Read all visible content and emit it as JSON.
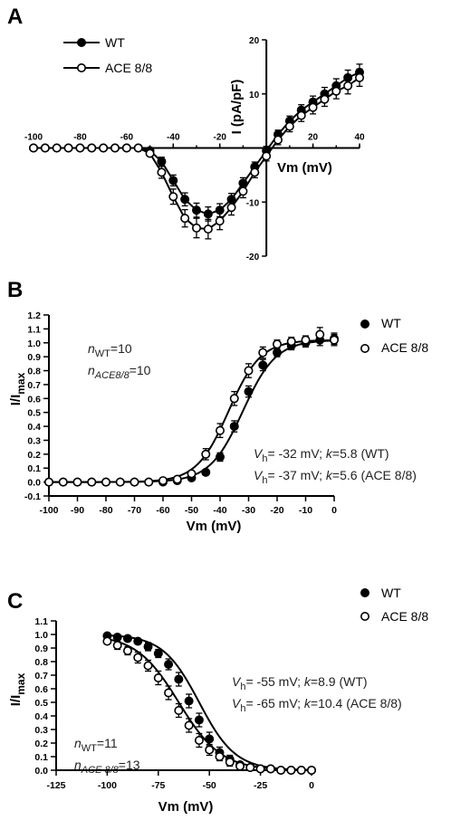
{
  "figure": {
    "panel_labels": [
      "A",
      "B",
      "C"
    ]
  },
  "chart_data": [
    {
      "panel": "A",
      "type": "line",
      "xlabel": "Vm (mV)",
      "ylabel": "I (pA/pF)",
      "xlim": [
        -100,
        40
      ],
      "ylim": [
        -20,
        20
      ],
      "xticks": [
        -100,
        -80,
        -60,
        -40,
        -20,
        20,
        40
      ],
      "yticks": [
        -20,
        -10,
        10,
        20
      ],
      "xtick_labels": [
        "-100",
        "-80",
        "-60",
        "-40",
        "-20",
        "20",
        "40"
      ],
      "ytick_labels": [
        "-20",
        "-10",
        "10",
        "20"
      ],
      "legend": {
        "placement": "top-left",
        "entries": [
          "WT",
          "ACE 8/8"
        ]
      },
      "series": [
        {
          "name": "WT",
          "marker": "filled",
          "x": [
            -100,
            -95,
            -90,
            -85,
            -80,
            -75,
            -70,
            -65,
            -60,
            -55,
            -50,
            -45,
            -40,
            -35,
            -30,
            -25,
            -20,
            -15,
            -10,
            -5,
            0,
            5,
            10,
            15,
            20,
            25,
            30,
            35,
            40
          ],
          "y": [
            0,
            0,
            0,
            0,
            0,
            0,
            0,
            0,
            0,
            0,
            -0.5,
            -2.5,
            -6.0,
            -9.5,
            -11.5,
            -12.2,
            -11.5,
            -9.5,
            -6.5,
            -3.5,
            -0.5,
            2.5,
            5.0,
            7.0,
            8.5,
            10.0,
            11.5,
            13.0,
            14.0
          ],
          "err": [
            0.2,
            0.2,
            0.2,
            0.2,
            0.2,
            0.2,
            0.2,
            0.2,
            0.2,
            0.2,
            0.4,
            0.8,
            1.0,
            1.2,
            1.3,
            1.3,
            1.2,
            1.1,
            1.0,
            0.9,
            0.8,
            0.8,
            0.9,
            1.0,
            1.1,
            1.2,
            1.3,
            1.4,
            1.5
          ]
        },
        {
          "name": "ACE 8/8",
          "marker": "open",
          "x": [
            -100,
            -95,
            -90,
            -85,
            -80,
            -75,
            -70,
            -65,
            -60,
            -55,
            -50,
            -45,
            -40,
            -35,
            -30,
            -25,
            -20,
            -15,
            -10,
            -5,
            0,
            5,
            10,
            15,
            20,
            25,
            30,
            35,
            40
          ],
          "y": [
            0,
            0,
            0,
            0,
            0,
            0,
            0,
            0,
            0,
            0,
            -1.0,
            -4.5,
            -9.0,
            -13.0,
            -14.8,
            -15.0,
            -13.5,
            -11.0,
            -8.0,
            -4.5,
            -1.5,
            1.5,
            4.0,
            6.0,
            7.5,
            9.0,
            10.5,
            11.5,
            13.0
          ],
          "err": [
            0.2,
            0.2,
            0.2,
            0.2,
            0.2,
            0.2,
            0.2,
            0.2,
            0.2,
            0.2,
            0.5,
            1.1,
            1.4,
            1.6,
            1.8,
            1.8,
            1.6,
            1.4,
            1.2,
            1.0,
            0.9,
            0.9,
            1.0,
            1.1,
            1.2,
            1.3,
            1.4,
            1.5,
            1.6
          ]
        }
      ]
    },
    {
      "panel": "B",
      "type": "scatter",
      "xlabel": "Vm (mV)",
      "ylabel": "I/I",
      "ylabel_sub": "max",
      "xlim": [
        -100,
        0
      ],
      "ylim": [
        -0.1,
        1.2
      ],
      "xticks": [
        -100,
        -90,
        -80,
        -70,
        -60,
        -50,
        -40,
        -30,
        -20,
        -10,
        0
      ],
      "yticks": [
        -0.1,
        0.0,
        0.1,
        0.2,
        0.3,
        0.4,
        0.5,
        0.6,
        0.7,
        0.8,
        0.9,
        1.0,
        1.1,
        1.2
      ],
      "xtick_labels": [
        "-100",
        "-90",
        "-80",
        "-70",
        "-60",
        "-50",
        "-40",
        "-30",
        "-20",
        "-10",
        "0"
      ],
      "ytick_labels": [
        "-0.1",
        "0.0",
        "0.1",
        "0.2",
        "0.3",
        "0.4",
        "0.5",
        "0.6",
        "0.7",
        "0.8",
        "0.9",
        "1.0",
        "1.1",
        "1.2"
      ],
      "legend": {
        "placement": "top-right",
        "entries": [
          "WT",
          "ACE 8/8"
        ]
      },
      "annotations": {
        "n1": {
          "pre": "n",
          "sub": "WT",
          "post": "=10"
        },
        "n2": {
          "pre": "n",
          "sub": "ACE8/8",
          "post": "=10"
        },
        "fit1": {
          "pre": "V",
          "sub": "h",
          "mid": "= -32 mV;  ",
          "k": "k",
          "post": "=5.8 (WT)"
        },
        "fit2": {
          "pre": "V",
          "sub": "h",
          "mid": "= -37 mV;  ",
          "k": "k",
          "post": "=5.6 (ACE 8/8)"
        }
      },
      "fits": [
        {
          "series": "WT",
          "vh": -32,
          "k": 5.8,
          "form": "activation"
        },
        {
          "series": "ACE 8/8",
          "vh": -37,
          "k": 5.6,
          "form": "activation"
        }
      ],
      "series": [
        {
          "name": "WT",
          "marker": "filled",
          "x": [
            -100,
            -95,
            -90,
            -85,
            -80,
            -75,
            -70,
            -65,
            -60,
            -55,
            -50,
            -45,
            -40,
            -35,
            -30,
            -25,
            -20,
            -15,
            -10,
            -5,
            0
          ],
          "y": [
            0.0,
            0.0,
            0.0,
            0.0,
            0.0,
            0.0,
            0.0,
            0.0,
            0.0,
            0.01,
            0.03,
            0.07,
            0.18,
            0.4,
            0.65,
            0.84,
            0.93,
            0.98,
            1.0,
            1.02,
            1.03
          ],
          "err": [
            0.01,
            0.01,
            0.01,
            0.01,
            0.01,
            0.01,
            0.01,
            0.01,
            0.01,
            0.01,
            0.01,
            0.02,
            0.03,
            0.04,
            0.04,
            0.04,
            0.03,
            0.03,
            0.03,
            0.04,
            0.04
          ]
        },
        {
          "name": "ACE 8/8",
          "marker": "open",
          "x": [
            -100,
            -95,
            -90,
            -85,
            -80,
            -75,
            -70,
            -65,
            -60,
            -55,
            -50,
            -45,
            -40,
            -35,
            -30,
            -25,
            -20,
            -15,
            -10,
            -5,
            0
          ],
          "y": [
            0.0,
            0.0,
            0.0,
            0.0,
            0.0,
            0.0,
            0.0,
            0.0,
            0.01,
            0.02,
            0.06,
            0.2,
            0.37,
            0.6,
            0.8,
            0.93,
            0.99,
            1.01,
            1.02,
            1.06,
            1.02
          ],
          "err": [
            0.01,
            0.01,
            0.01,
            0.01,
            0.01,
            0.01,
            0.01,
            0.01,
            0.01,
            0.01,
            0.02,
            0.04,
            0.05,
            0.05,
            0.05,
            0.04,
            0.03,
            0.03,
            0.03,
            0.05,
            0.04
          ]
        }
      ]
    },
    {
      "panel": "C",
      "type": "scatter",
      "xlabel": "Vm (mV)",
      "ylabel": "I/I",
      "ylabel_sub": "max",
      "xlim": [
        -125,
        0
      ],
      "ylim": [
        0.0,
        1.1
      ],
      "xticks": [
        -125,
        -100,
        -75,
        -50,
        -25,
        0
      ],
      "yticks": [
        0.0,
        0.1,
        0.2,
        0.3,
        0.4,
        0.5,
        0.6,
        0.7,
        0.8,
        0.9,
        1.0,
        1.1
      ],
      "xtick_labels": [
        "-125",
        "-100",
        "-75",
        "-50",
        "-25",
        "0"
      ],
      "ytick_labels": [
        "0.0",
        "0.1",
        "0.2",
        "0.3",
        "0.4",
        "0.5",
        "0.6",
        "0.7",
        "0.8",
        "0.9",
        "1.0",
        "1.1"
      ],
      "legend": {
        "placement": "top-right",
        "entries": [
          "WT",
          "ACE 8/8"
        ]
      },
      "annotations": {
        "n1": {
          "pre": "n",
          "sub": "WT",
          "post": "=11"
        },
        "n2": {
          "pre": "n",
          "sub": "ACE 8/8",
          "post": "=13"
        },
        "fit1": {
          "pre": "V",
          "sub": "h",
          "mid": "= -55 mV;  ",
          "k": "k",
          "post": "=8.9 (WT)"
        },
        "fit2": {
          "pre": "V",
          "sub": "h",
          "mid": "= -65 mV;  ",
          "k": "k",
          "post": "=10.4 (ACE 8/8)"
        }
      },
      "fits": [
        {
          "series": "WT",
          "vh": -55,
          "k": 8.9,
          "form": "inactivation"
        },
        {
          "series": "ACE 8/8",
          "vh": -65,
          "k": 10.4,
          "form": "inactivation"
        }
      ],
      "series": [
        {
          "name": "WT",
          "marker": "filled",
          "x": [
            -100,
            -95,
            -90,
            -85,
            -80,
            -75,
            -70,
            -65,
            -60,
            -55,
            -50,
            -45,
            -40,
            -35,
            -30,
            -25,
            -20,
            -15,
            -10,
            -5,
            0
          ],
          "y": [
            0.99,
            0.98,
            0.97,
            0.95,
            0.91,
            0.86,
            0.78,
            0.67,
            0.51,
            0.37,
            0.23,
            0.13,
            0.08,
            0.04,
            0.02,
            0.01,
            0.01,
            0.0,
            0.0,
            0.0,
            0.0
          ],
          "err": [
            0.01,
            0.01,
            0.02,
            0.02,
            0.03,
            0.03,
            0.04,
            0.05,
            0.05,
            0.05,
            0.05,
            0.04,
            0.03,
            0.02,
            0.02,
            0.01,
            0.01,
            0.01,
            0.01,
            0.01,
            0.01
          ]
        },
        {
          "name": "ACE 8/8",
          "marker": "open",
          "x": [
            -100,
            -95,
            -90,
            -85,
            -80,
            -75,
            -70,
            -65,
            -60,
            -55,
            -50,
            -45,
            -40,
            -35,
            -30,
            -25,
            -20,
            -15,
            -10,
            -5,
            0
          ],
          "y": [
            0.95,
            0.92,
            0.88,
            0.83,
            0.77,
            0.68,
            0.57,
            0.44,
            0.33,
            0.22,
            0.15,
            0.1,
            0.06,
            0.03,
            0.02,
            0.01,
            0.01,
            0.0,
            0.0,
            0.0,
            0.0
          ],
          "err": [
            0.02,
            0.03,
            0.03,
            0.04,
            0.04,
            0.05,
            0.05,
            0.05,
            0.05,
            0.05,
            0.04,
            0.03,
            0.03,
            0.02,
            0.02,
            0.01,
            0.01,
            0.01,
            0.01,
            0.01,
            0.01
          ]
        }
      ]
    }
  ]
}
